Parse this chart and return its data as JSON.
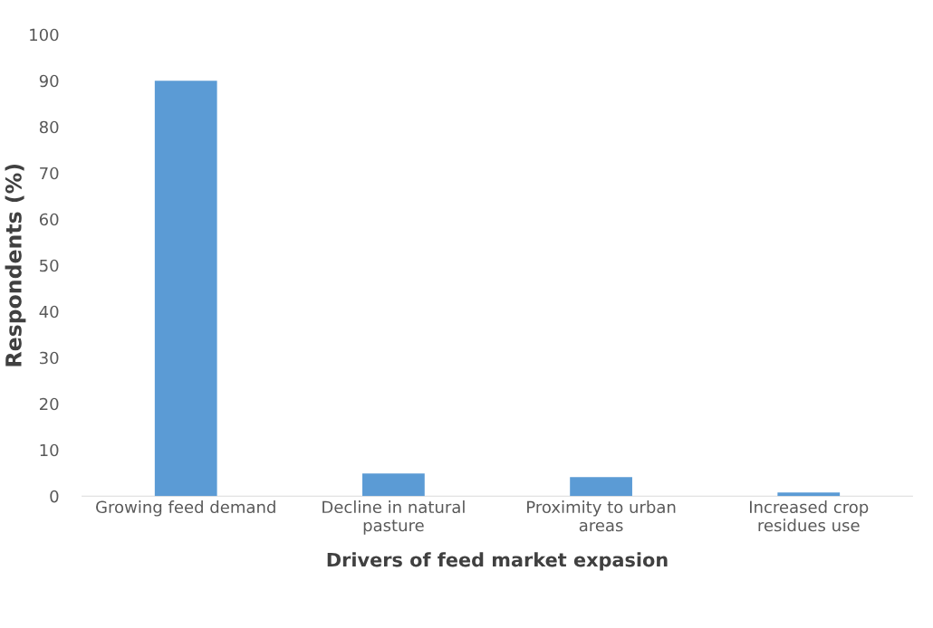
{
  "chart_data": {
    "type": "bar",
    "xlabel": "Drivers of feed market expasion",
    "ylabel": "Respondents (%)",
    "categories": [
      "Growing feed demand",
      "Decline in natural\npasture",
      "Proximity to urban\nareas",
      "Increased crop\nresidues use"
    ],
    "values": [
      90,
      4.9,
      4.1,
      0.8
    ],
    "color": "#5b9bd5",
    "ylim": [
      0,
      100
    ],
    "yticks": [
      0,
      10,
      20,
      30,
      40,
      50,
      60,
      70,
      80,
      90,
      100
    ],
    "grid": false,
    "legend": false
  }
}
